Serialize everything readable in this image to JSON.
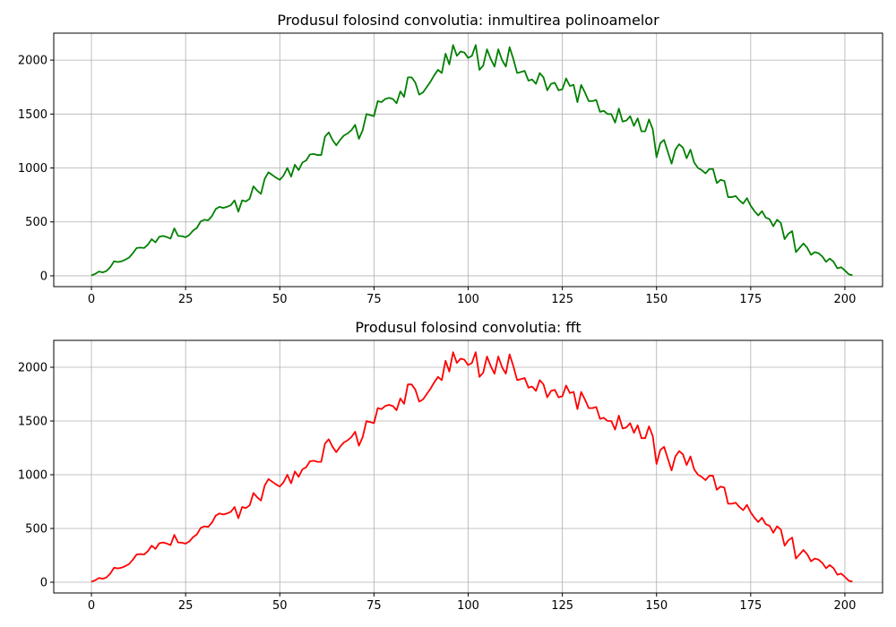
{
  "chart_data": [
    {
      "type": "line",
      "title": "Produsul folosind convolutia: inmultirea polinoamelor",
      "xlabel": "",
      "ylabel": "",
      "xlim": [
        -10,
        210
      ],
      "ylim": [
        -100,
        2250
      ],
      "xticks": [
        0,
        25,
        50,
        75,
        100,
        125,
        150,
        175,
        200
      ],
      "yticks": [
        0,
        500,
        1000,
        1500,
        2000
      ],
      "grid": true,
      "color": "#008000",
      "series": [
        {
          "x_start": 0,
          "x_step": 1,
          "values": [
            5,
            18,
            40,
            32,
            45,
            80,
            135,
            128,
            135,
            150,
            170,
            210,
            258,
            262,
            258,
            290,
            340,
            310,
            362,
            370,
            360,
            345,
            440,
            370,
            368,
            358,
            380,
            420,
            445,
            505,
            520,
            515,
            555,
            620,
            640,
            630,
            640,
            655,
            700,
            595,
            700,
            690,
            715,
            830,
            790,
            760,
            900,
            960,
            935,
            910,
            890,
            930,
            1000,
            920,
            1030,
            980,
            1050,
            1070,
            1125,
            1130,
            1120,
            1120,
            1290,
            1330,
            1260,
            1210,
            1260,
            1300,
            1320,
            1350,
            1400,
            1270,
            1350,
            1500,
            1490,
            1480,
            1620,
            1610,
            1640,
            1650,
            1640,
            1600,
            1710,
            1660,
            1840,
            1840,
            1790,
            1680,
            1700,
            1750,
            1800,
            1860,
            1910,
            1880,
            2060,
            1960,
            2140,
            2040,
            2080,
            2070,
            2020,
            2040,
            2140,
            1910,
            1950,
            2100,
            2010,
            1940,
            2100,
            2000,
            1940,
            2120,
            2010,
            1880,
            1890,
            1900,
            1810,
            1820,
            1780,
            1880,
            1840,
            1720,
            1780,
            1790,
            1720,
            1730,
            1830,
            1760,
            1770,
            1610,
            1770,
            1700,
            1620,
            1620,
            1630,
            1520,
            1530,
            1500,
            1500,
            1420,
            1550,
            1430,
            1440,
            1480,
            1390,
            1460,
            1340,
            1340,
            1450,
            1360,
            1100,
            1230,
            1260,
            1150,
            1040,
            1170,
            1220,
            1190,
            1090,
            1170,
            1050,
            1000,
            980,
            950,
            990,
            990,
            860,
            890,
            880,
            730,
            730,
            740,
            700,
            670,
            720,
            650,
            600,
            560,
            600,
            540,
            525,
            460,
            520,
            490,
            340,
            390,
            415,
            220,
            260,
            300,
            260,
            195,
            220,
            210,
            180,
            130,
            160,
            130,
            70,
            80,
            50,
            15,
            5
          ]
        }
      ]
    },
    {
      "type": "line",
      "title": "Produsul folosind convolutia: fft",
      "xlabel": "",
      "ylabel": "",
      "xlim": [
        -10,
        210
      ],
      "ylim": [
        -100,
        2250
      ],
      "xticks": [
        0,
        25,
        50,
        75,
        100,
        125,
        150,
        175,
        200
      ],
      "yticks": [
        0,
        500,
        1000,
        1500,
        2000
      ],
      "grid": true,
      "color": "#ff0000",
      "series": [
        {
          "x_start": 0,
          "x_step": 1,
          "values": [
            5,
            18,
            40,
            32,
            45,
            80,
            135,
            128,
            135,
            150,
            170,
            210,
            258,
            262,
            258,
            290,
            340,
            310,
            362,
            370,
            360,
            345,
            440,
            370,
            368,
            358,
            380,
            420,
            445,
            505,
            520,
            515,
            555,
            620,
            640,
            630,
            640,
            655,
            700,
            595,
            700,
            690,
            715,
            830,
            790,
            760,
            900,
            960,
            935,
            910,
            890,
            930,
            1000,
            920,
            1030,
            980,
            1050,
            1070,
            1125,
            1130,
            1120,
            1120,
            1290,
            1330,
            1260,
            1210,
            1260,
            1300,
            1320,
            1350,
            1400,
            1270,
            1350,
            1500,
            1490,
            1480,
            1620,
            1610,
            1640,
            1650,
            1640,
            1600,
            1710,
            1660,
            1840,
            1840,
            1790,
            1680,
            1700,
            1750,
            1800,
            1860,
            1910,
            1880,
            2060,
            1960,
            2140,
            2040,
            2080,
            2070,
            2020,
            2040,
            2140,
            1910,
            1950,
            2100,
            2010,
            1940,
            2100,
            2000,
            1940,
            2120,
            2010,
            1880,
            1890,
            1900,
            1810,
            1820,
            1780,
            1880,
            1840,
            1720,
            1780,
            1790,
            1720,
            1730,
            1830,
            1760,
            1770,
            1610,
            1770,
            1700,
            1620,
            1620,
            1630,
            1520,
            1530,
            1500,
            1500,
            1420,
            1550,
            1430,
            1440,
            1480,
            1390,
            1460,
            1340,
            1340,
            1450,
            1360,
            1100,
            1230,
            1260,
            1150,
            1040,
            1170,
            1220,
            1190,
            1090,
            1170,
            1050,
            1000,
            980,
            950,
            990,
            990,
            860,
            890,
            880,
            730,
            730,
            740,
            700,
            670,
            720,
            650,
            600,
            560,
            600,
            540,
            525,
            460,
            520,
            490,
            340,
            390,
            415,
            220,
            260,
            300,
            260,
            195,
            220,
            210,
            180,
            130,
            160,
            130,
            70,
            80,
            50,
            15,
            5
          ]
        }
      ]
    }
  ]
}
